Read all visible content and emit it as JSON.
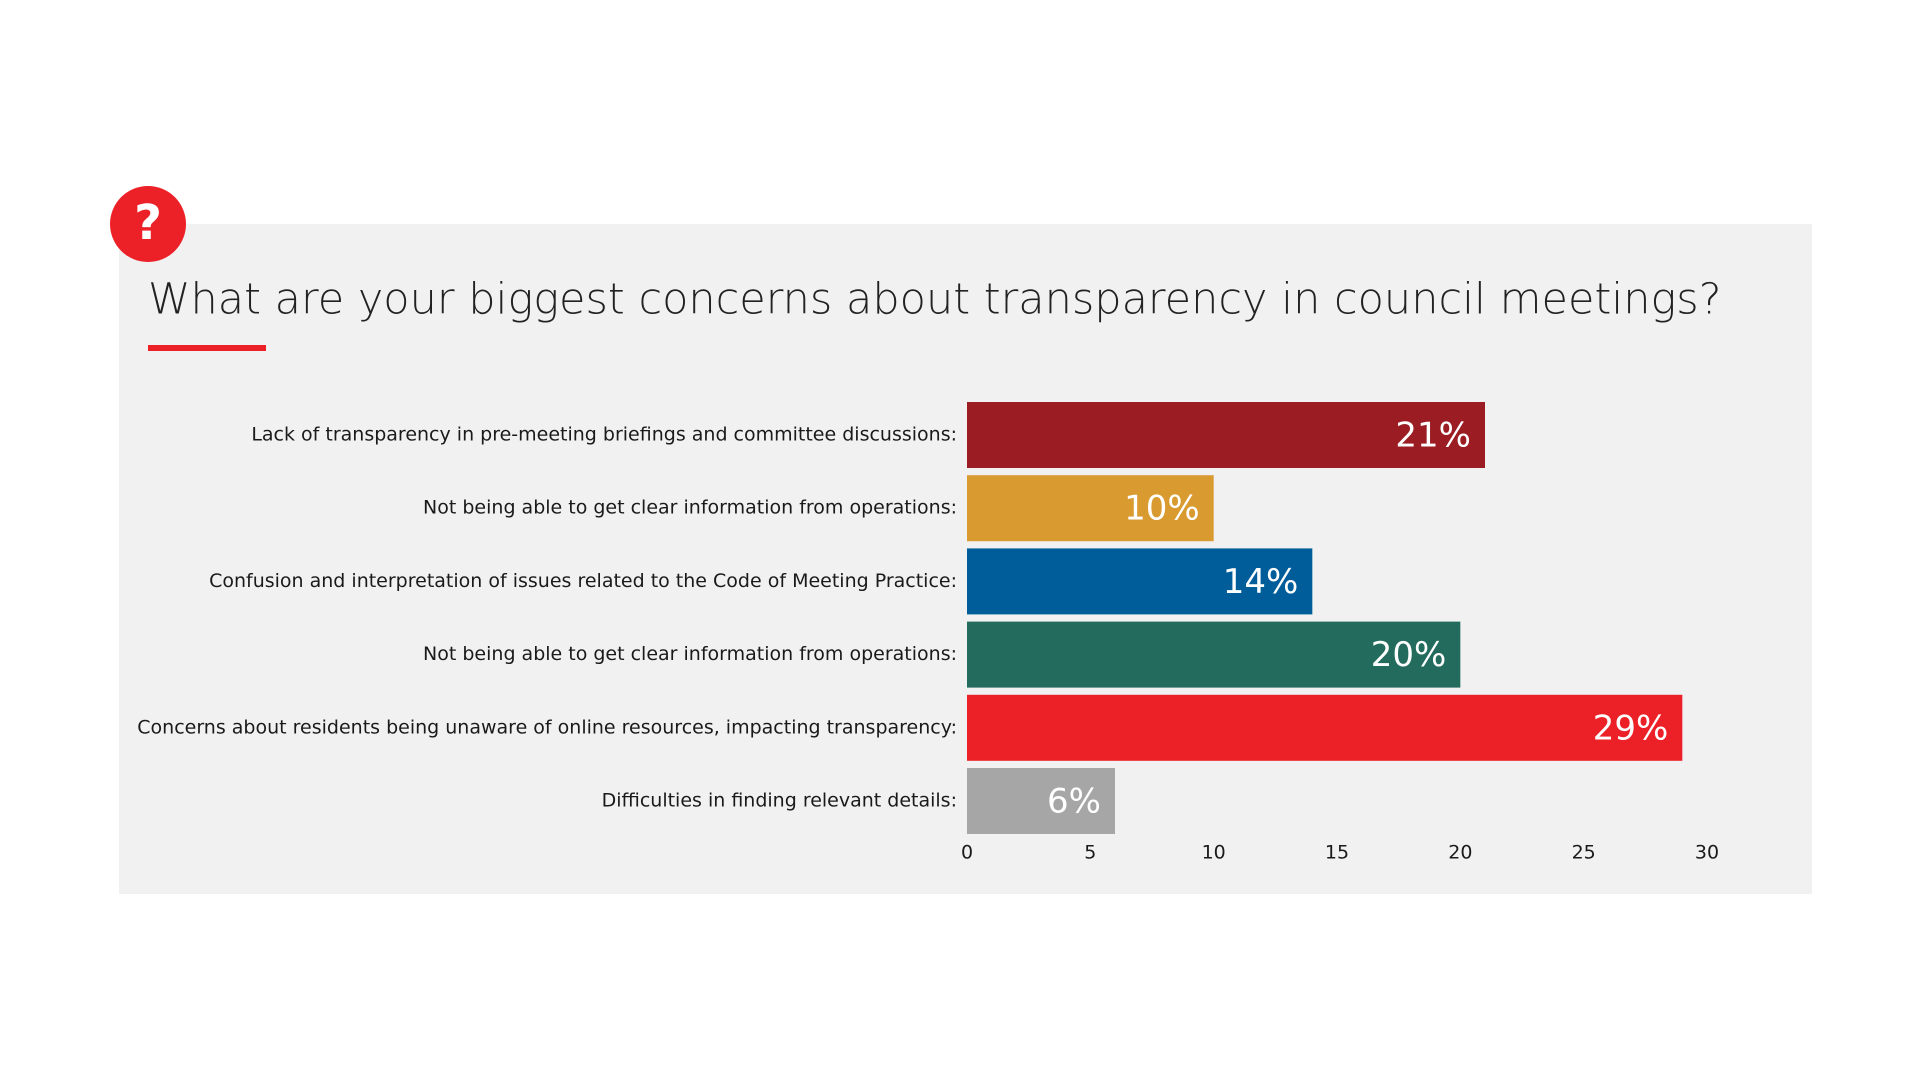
{
  "chart_data": {
    "type": "bar",
    "orientation": "horizontal",
    "title": "What are your biggest concerns about transparency in council meetings?",
    "categories": [
      "Lack of transparency in pre-meeting briefings and committee discussions:",
      "Not being able to get clear information from operations:",
      "Confusion and interpretation of issues related to the Code of Meeting Practice:",
      "Not being able to get clear information from operations:",
      "Concerns about residents being unaware of online resources, impacting transparency:",
      "Difficulties in finding relevant details:"
    ],
    "values": [
      21,
      10,
      14,
      20,
      29,
      6
    ],
    "value_labels": [
      "21%",
      "10%",
      "14%",
      "20%",
      "29%",
      "6%"
    ],
    "colors": [
      "#9b1c22",
      "#d99a30",
      "#005d9a",
      "#226b5d",
      "#ec2127",
      "#a6a6a6"
    ],
    "xlim": [
      0,
      30
    ],
    "xticks": [
      0,
      5,
      10,
      15,
      20,
      25,
      30
    ],
    "grid": false
  }
}
